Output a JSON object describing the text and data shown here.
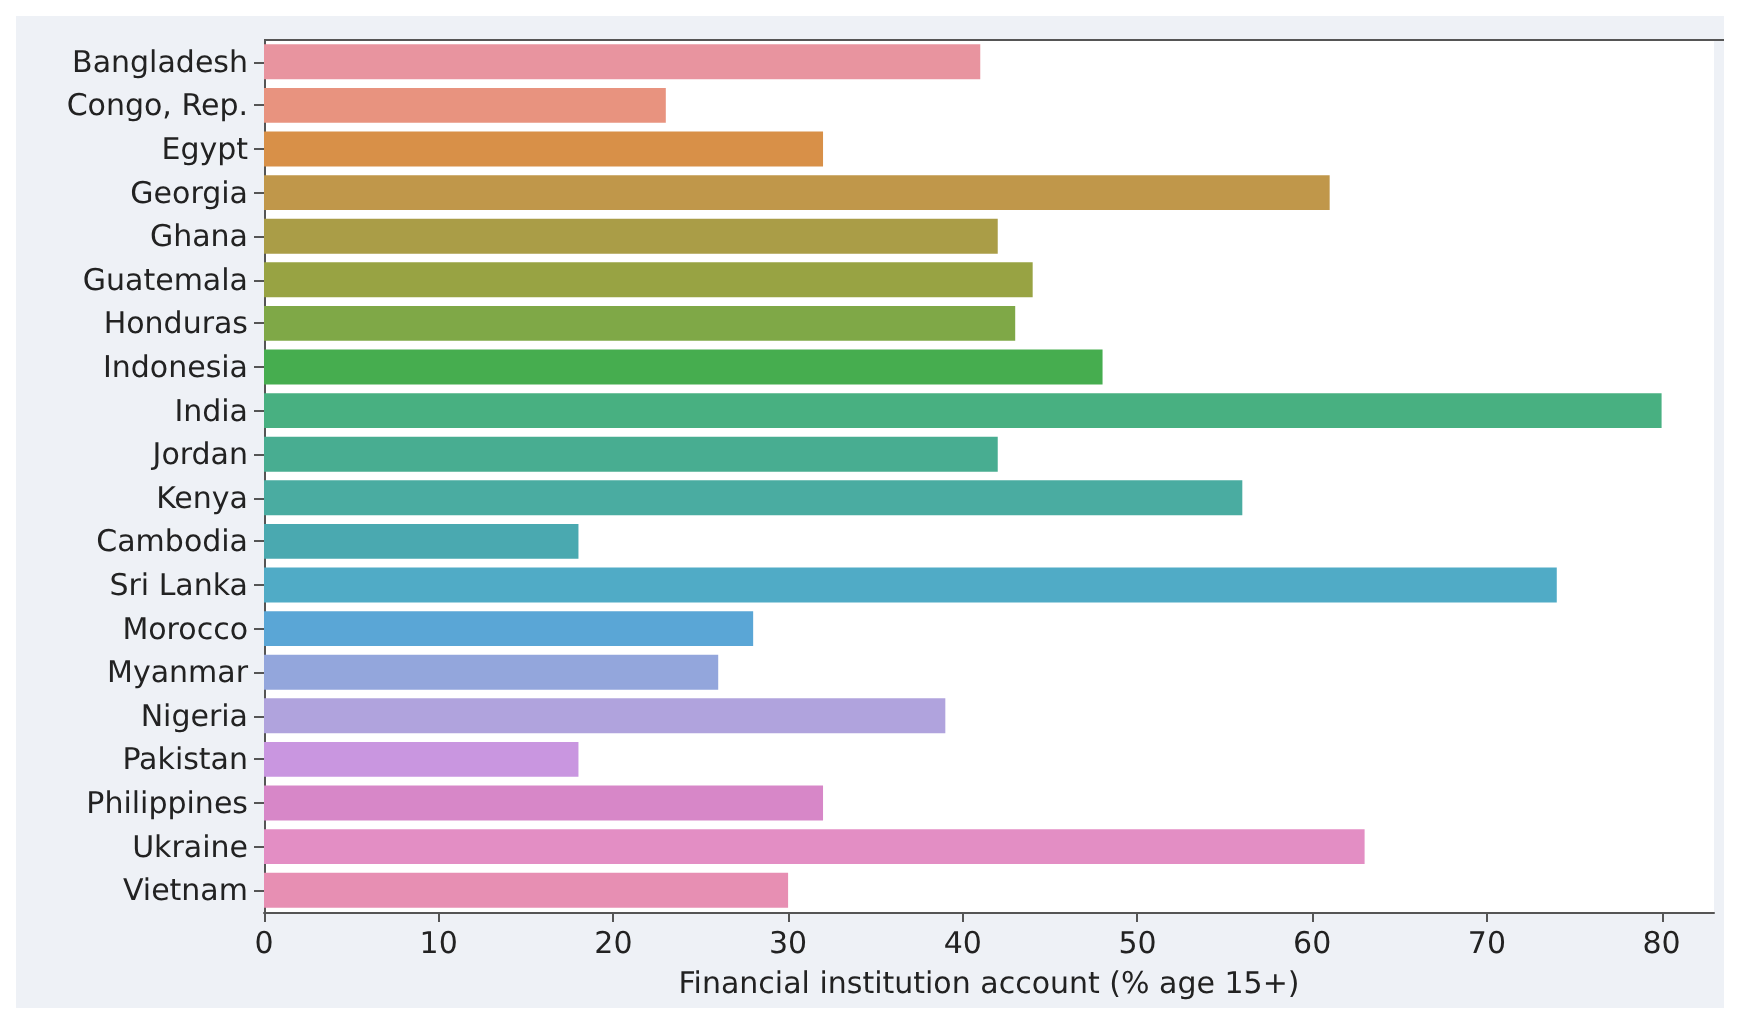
{
  "chart_data": {
    "type": "bar",
    "orientation": "horizontal",
    "xlabel": "Financial institution account (% age 15+)",
    "categories": [
      "Bangladesh",
      "Congo, Rep.",
      "Egypt",
      "Georgia",
      "Ghana",
      "Guatemala",
      "Honduras",
      "Indonesia",
      "India",
      "Jordan",
      "Kenya",
      "Cambodia",
      "Sri Lanka",
      "Morocco",
      "Myanmar",
      "Nigeria",
      "Pakistan",
      "Philippines",
      "Ukraine",
      "Vietnam"
    ],
    "values": [
      41,
      23,
      32,
      61,
      42,
      44,
      43,
      48,
      80,
      42,
      56,
      18,
      74,
      28,
      26,
      39,
      18,
      32,
      63,
      30
    ],
    "colors": [
      "#e8949f",
      "#e8937f",
      "#d89048",
      "#c0974a",
      "#aa9d47",
      "#98a343",
      "#7fa847",
      "#46ad4f",
      "#48b081",
      "#48ad91",
      "#4aaca1",
      "#4aa9b0",
      "#50abc6",
      "#5aa6d6",
      "#93a6dc",
      "#b0a3dd",
      "#c996e0",
      "#d787c8",
      "#e38ec4",
      "#e78fb3"
    ],
    "xlim": [
      0,
      83
    ],
    "xticks": [
      0,
      10,
      20,
      30,
      40,
      50,
      60,
      70,
      80
    ],
    "grid": false
  }
}
